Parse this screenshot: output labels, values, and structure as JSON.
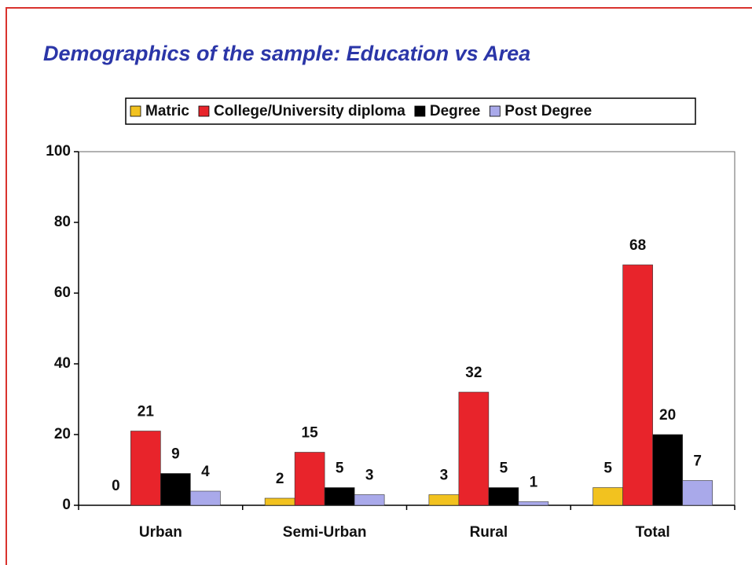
{
  "chart_data": {
    "type": "bar",
    "title": "Demographics of the sample:  Education vs Area",
    "categories": [
      "Urban",
      "Semi-Urban",
      "Rural",
      "Total"
    ],
    "series": [
      {
        "name": "Matric",
        "color": "#f2c21f",
        "values": [
          0,
          2,
          3,
          5
        ]
      },
      {
        "name": "College/University diploma",
        "color": "#e8242b",
        "values": [
          21,
          15,
          32,
          68
        ]
      },
      {
        "name": "Degree",
        "color": "#000000",
        "values": [
          9,
          5,
          5,
          20
        ]
      },
      {
        "name": "Post Degree",
        "color": "#a9a9ea",
        "values": [
          4,
          3,
          1,
          7
        ]
      }
    ],
    "ylim": [
      0,
      100
    ],
    "yticks": [
      0,
      20,
      40,
      60,
      80,
      100
    ],
    "legend": "top"
  }
}
